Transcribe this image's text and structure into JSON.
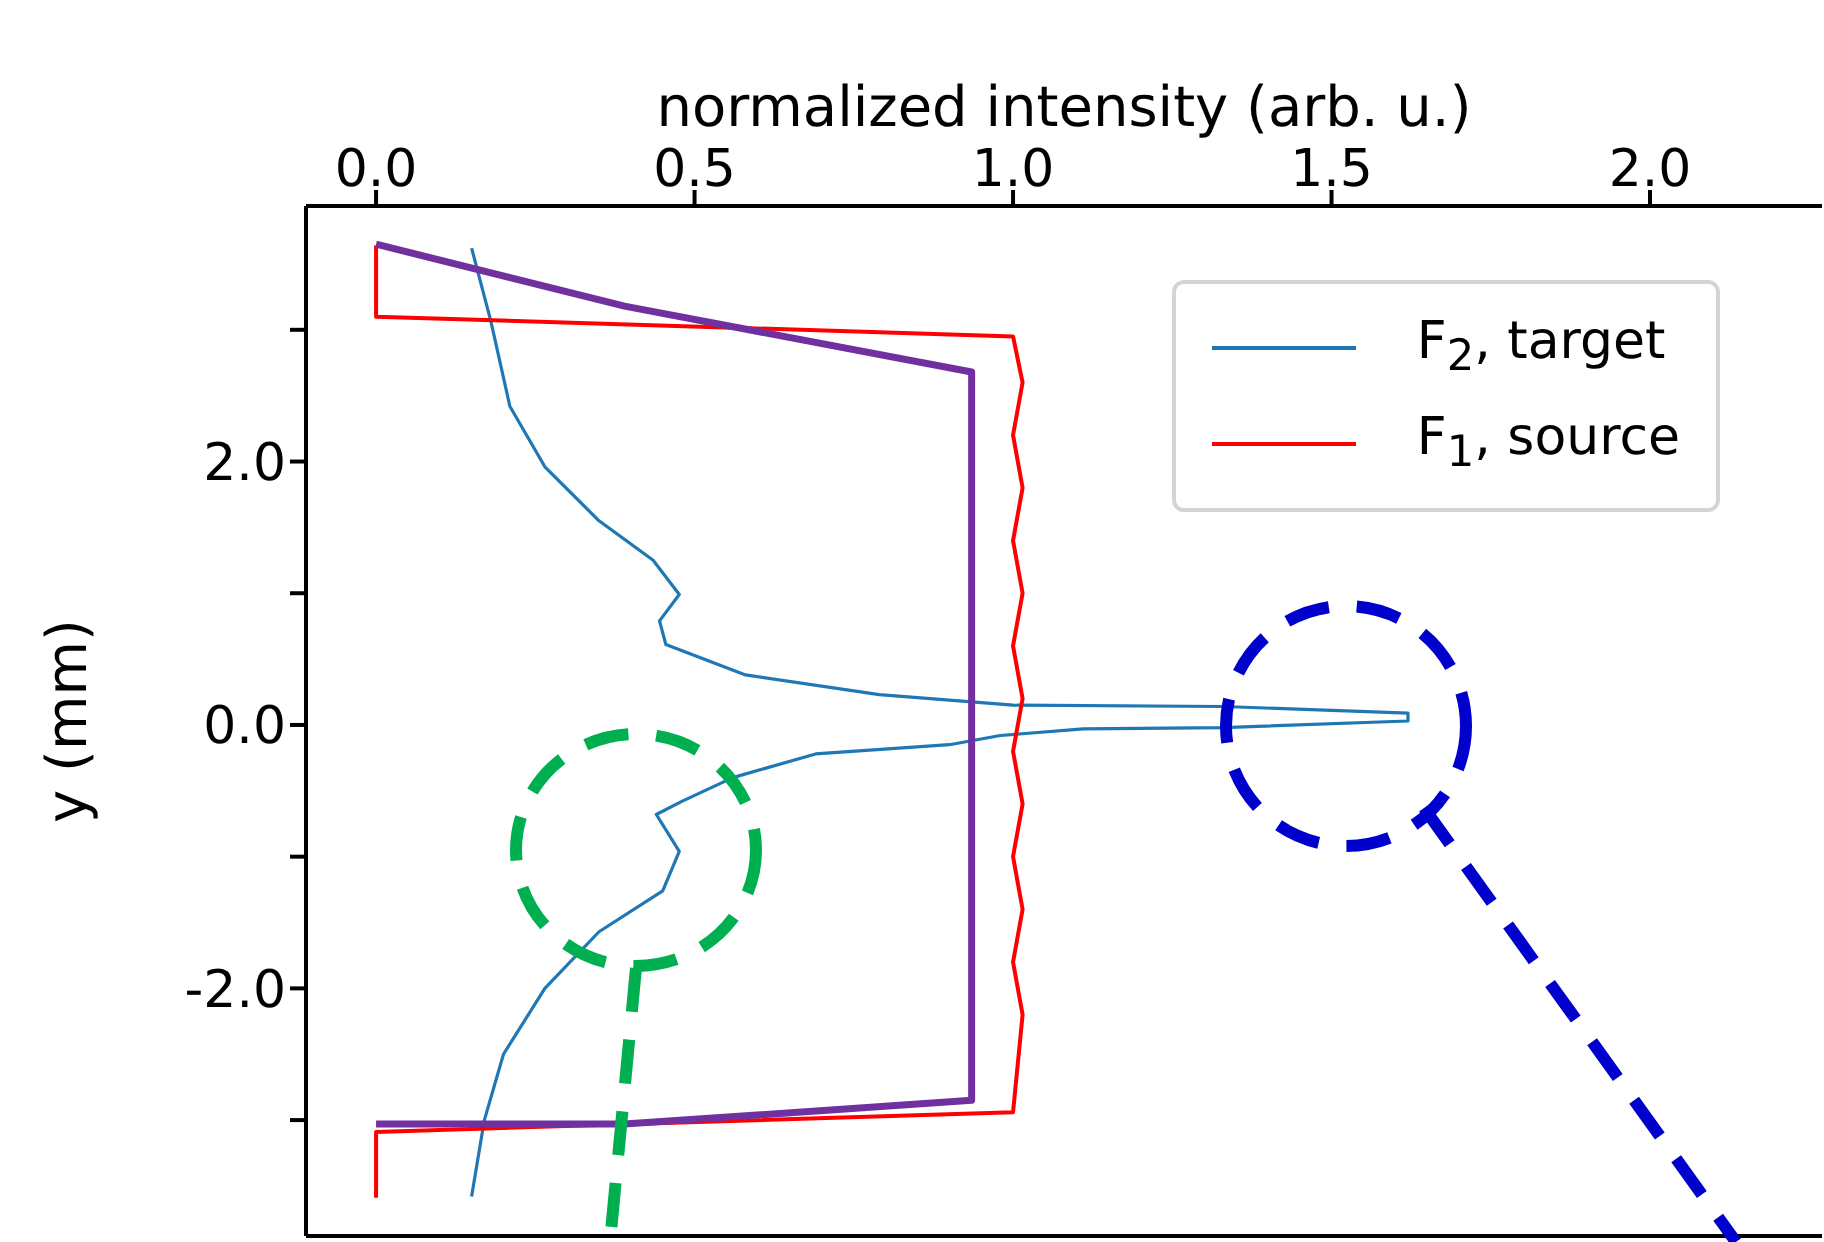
{
  "chart_data": {
    "type": "line",
    "xlabel": "normalized intensity (arb. u.)",
    "ylabel": "y (mm)",
    "xlim": [
      -0.11,
      2.27
    ],
    "ylim": [
      -3.88,
      3.94
    ],
    "xticks": [
      {
        "value": 0,
        "label": "0.0"
      },
      {
        "value": 0.5,
        "label": "0.5"
      },
      {
        "value": 1,
        "label": "1.0"
      },
      {
        "value": 1.5,
        "label": "1.5"
      },
      {
        "value": 2,
        "label": "2.0"
      }
    ],
    "yticks": [
      {
        "value": 3,
        "label": null
      },
      {
        "value": 2,
        "label": "2.0"
      },
      {
        "value": 1,
        "label": null
      },
      {
        "value": 0,
        "label": "0.0"
      },
      {
        "value": -1,
        "label": null
      },
      {
        "value": -2,
        "label": "-2.0"
      },
      {
        "value": -3,
        "label": null
      }
    ],
    "legend": "top right",
    "series": [
      {
        "name": "F$_{2}$, target",
        "color": "#1f77b4",
        "x": [
          0.15,
          0.18,
          0.21,
          0.265,
          0.35,
          0.435,
          0.476,
          0.445,
          0.455,
          0.58,
          0.79,
          1.0,
          1.33,
          1.62,
          1.62,
          1.33,
          1.11,
          0.98,
          0.9,
          0.69,
          0.56,
          0.48,
          0.44,
          0.476,
          0.45,
          0.35,
          0.265,
          0.2,
          0.17,
          0.15
        ],
        "values": [
          3.62,
          3.07,
          2.42,
          1.96,
          1.55,
          1.25,
          0.99,
          0.79,
          0.61,
          0.38,
          0.23,
          0.15,
          0.14,
          0.09,
          0.03,
          -0.02,
          -0.03,
          -0.08,
          -0.15,
          -0.22,
          -0.4,
          -0.58,
          -0.68,
          -0.96,
          -1.26,
          -1.57,
          -2.0,
          -2.5,
          -3.0,
          -3.58
        ]
      },
      {
        "name": "F$_{1}$, source",
        "color": "#ff0000",
        "x": [
          0,
          0,
          1.0,
          1.015,
          1.0,
          1.015,
          1.0,
          1.015,
          1.0,
          1.015,
          1.0,
          1.015,
          1.0,
          1.015,
          1.0,
          1.015,
          1.0,
          0,
          0
        ],
        "values": [
          3.64,
          3.1,
          2.95,
          2.6,
          2.2,
          1.8,
          1.4,
          1.0,
          0.6,
          0.2,
          -0.2,
          -0.6,
          -1.0,
          -1.4,
          -1.8,
          -2.2,
          -2.94,
          -3.09,
          -3.59
        ]
      },
      {
        "color": "#7030a0",
        "x": [
          0,
          0.39,
          0.935,
          0.935,
          0.39,
          0
        ],
        "values": [
          3.65,
          3.18,
          2.68,
          -2.85,
          -3.03,
          -3.03
        ]
      }
    ]
  }
}
